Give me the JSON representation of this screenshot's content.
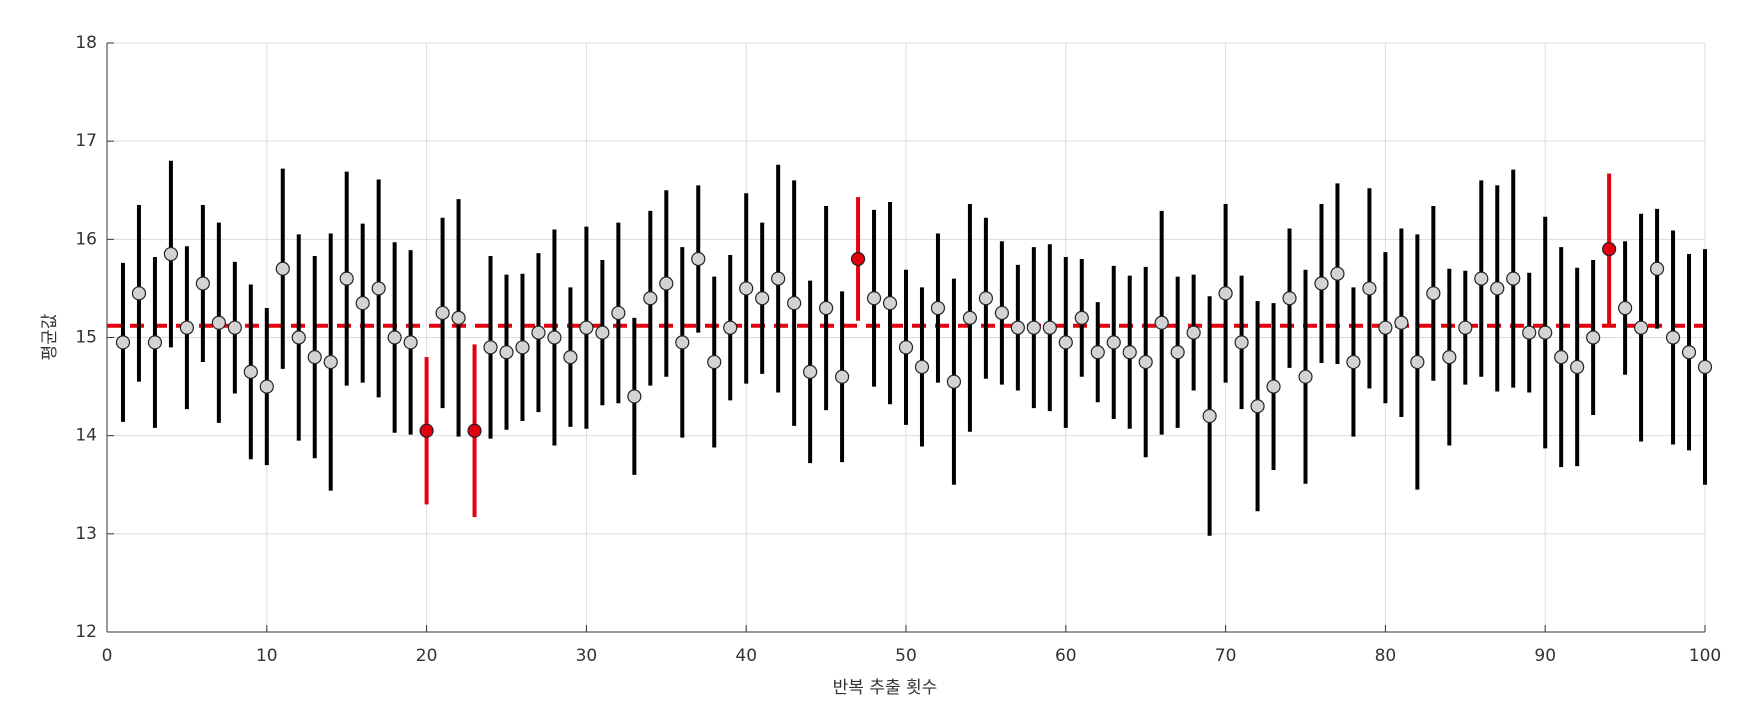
{
  "chart_data": {
    "type": "errorbar",
    "x_label": "반복 추출 횟수",
    "y_label": "평균값",
    "x": [
      1,
      2,
      3,
      4,
      5,
      6,
      7,
      8,
      9,
      10,
      11,
      12,
      13,
      14,
      15,
      16,
      17,
      18,
      19,
      20,
      21,
      22,
      23,
      24,
      25,
      26,
      27,
      28,
      29,
      30,
      31,
      32,
      33,
      34,
      35,
      36,
      37,
      38,
      39,
      40,
      41,
      42,
      43,
      44,
      45,
      46,
      47,
      48,
      49,
      50,
      51,
      52,
      53,
      54,
      55,
      56,
      57,
      58,
      59,
      60,
      61,
      62,
      63,
      64,
      65,
      66,
      67,
      68,
      69,
      70,
      71,
      72,
      73,
      74,
      75,
      76,
      77,
      78,
      79,
      80,
      81,
      82,
      83,
      84,
      85,
      86,
      87,
      88,
      89,
      90,
      91,
      92,
      93,
      94,
      95,
      96,
      97,
      98,
      99,
      100
    ],
    "values": [
      14.95,
      15.45,
      14.95,
      15.85,
      15.1,
      15.55,
      15.15,
      15.1,
      14.65,
      14.5,
      15.7,
      15.0,
      14.8,
      14.75,
      15.6,
      15.35,
      15.5,
      15.0,
      14.95,
      14.05,
      15.25,
      15.2,
      14.05,
      14.9,
      14.85,
      14.9,
      15.05,
      15.0,
      14.8,
      15.1,
      15.05,
      15.25,
      14.4,
      15.4,
      15.55,
      14.95,
      15.8,
      14.75,
      15.1,
      15.5,
      15.4,
      15.6,
      15.35,
      14.65,
      15.3,
      14.6,
      15.8,
      15.4,
      15.35,
      14.9,
      14.7,
      15.3,
      14.55,
      15.2,
      15.4,
      15.25,
      15.1,
      15.1,
      15.1,
      14.95,
      15.2,
      14.85,
      14.95,
      14.85,
      14.75,
      15.15,
      14.85,
      15.05,
      14.2,
      15.45,
      14.95,
      14.3,
      14.5,
      15.4,
      14.6,
      15.55,
      15.65,
      14.75,
      15.5,
      15.1,
      15.15,
      14.75,
      15.45,
      14.8,
      15.1,
      15.6,
      15.5,
      15.6,
      15.05,
      15.05,
      14.8,
      14.7,
      15.0,
      15.9,
      15.3,
      15.1,
      15.7,
      15.0,
      14.85,
      14.7
    ],
    "errors": [
      0.81,
      0.9,
      0.87,
      0.95,
      0.83,
      0.8,
      1.02,
      0.67,
      0.89,
      0.8,
      1.02,
      1.05,
      1.03,
      1.31,
      1.09,
      0.81,
      1.11,
      0.97,
      0.94,
      0.75,
      0.97,
      1.21,
      0.88,
      0.93,
      0.79,
      0.75,
      0.81,
      1.1,
      0.71,
      1.03,
      0.74,
      0.92,
      0.8,
      0.89,
      0.95,
      0.97,
      0.75,
      0.87,
      0.74,
      0.97,
      0.77,
      1.16,
      1.25,
      0.93,
      1.04,
      0.87,
      0.63,
      0.9,
      1.03,
      0.79,
      0.81,
      0.76,
      1.05,
      1.16,
      0.82,
      0.73,
      0.64,
      0.82,
      0.85,
      0.87,
      0.6,
      0.51,
      0.78,
      0.78,
      0.97,
      1.14,
      0.77,
      0.59,
      1.22,
      0.91,
      0.68,
      1.07,
      0.85,
      0.71,
      1.09,
      0.81,
      0.92,
      0.76,
      1.02,
      0.77,
      0.96,
      1.3,
      0.89,
      0.9,
      0.58,
      1.0,
      1.05,
      1.11,
      0.61,
      1.18,
      1.12,
      1.01,
      0.79,
      0.77,
      0.68,
      1.16,
      0.61,
      1.09,
      1.0,
      1.2
    ],
    "reference": 15.12,
    "color": "#000000",
    "highlight_color": "#e3000f",
    "marker_color": "#d3d3d3",
    "reference_color": "#e3000f",
    "xlim": [
      0,
      100
    ],
    "xticks": [
      0,
      10,
      20,
      30,
      40,
      50,
      60,
      70,
      80,
      90,
      100
    ],
    "ylim": [
      12,
      18
    ],
    "yticks": [
      12,
      13,
      14,
      15,
      16,
      17,
      18
    ],
    "grid": true
  }
}
